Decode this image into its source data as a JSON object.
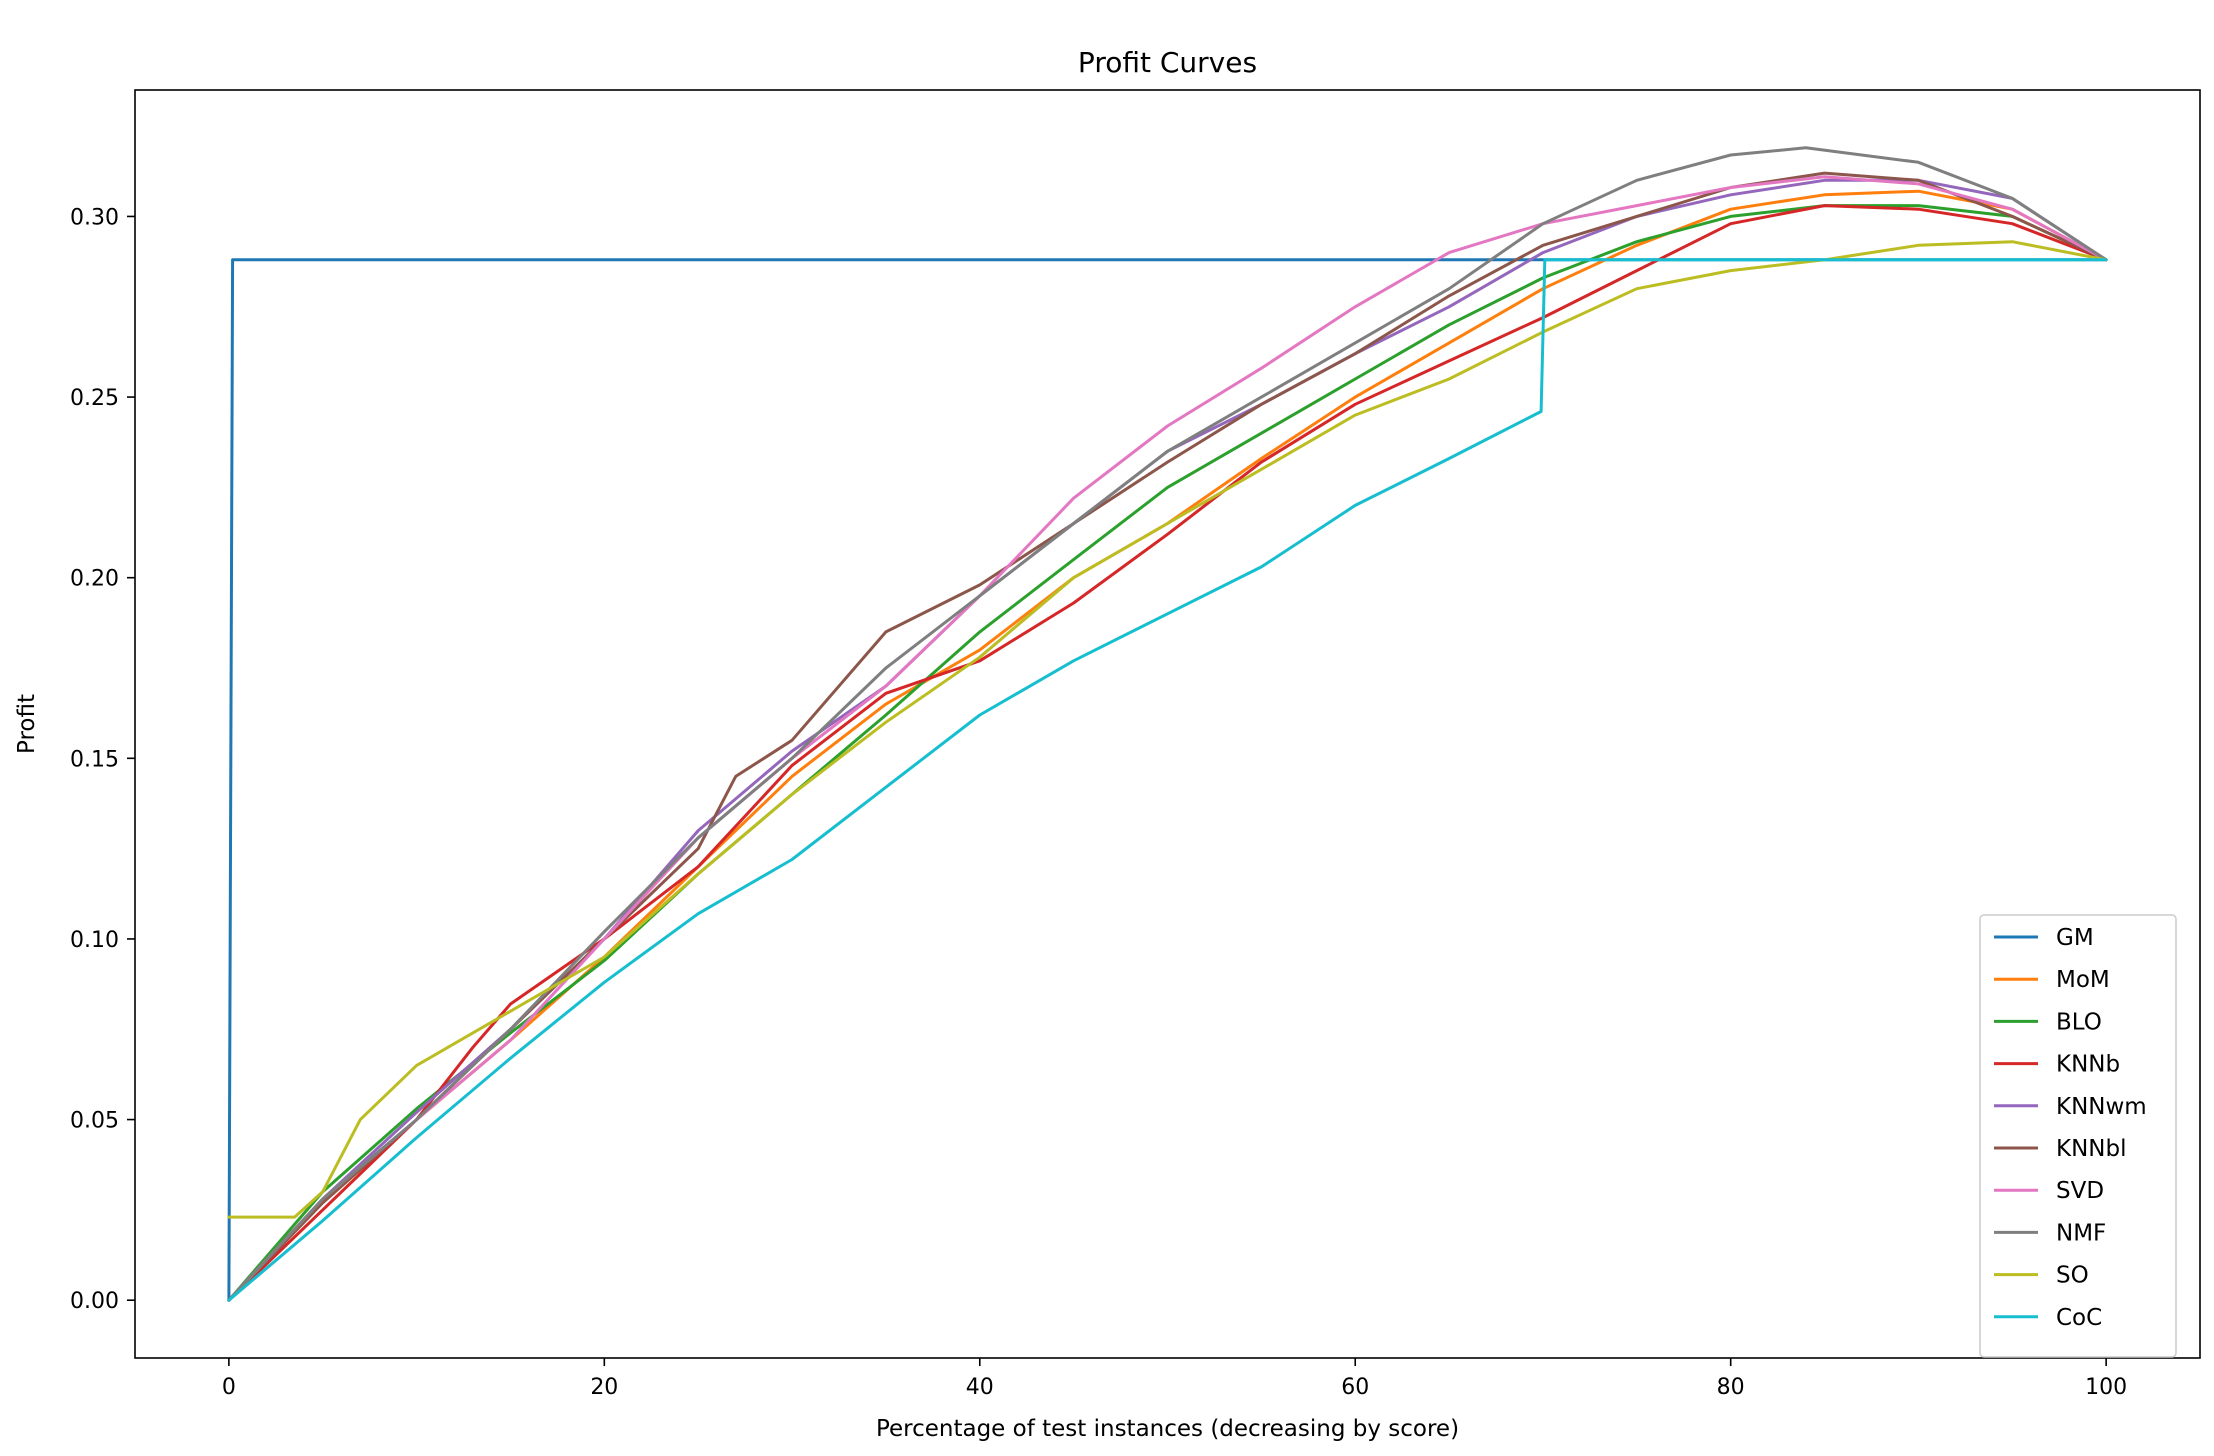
{
  "chart_data": {
    "type": "line",
    "title": "Profit Curves",
    "xlabel": "Percentage of test instances (decreasing by score)",
    "ylabel": "Profit",
    "xlim": [
      -5,
      105
    ],
    "ylim": [
      -0.016,
      0.335
    ],
    "xticks": [
      0,
      20,
      40,
      60,
      80,
      100
    ],
    "xtick_labels": [
      "0",
      "20",
      "40",
      "60",
      "80",
      "100"
    ],
    "yticks": [
      0.0,
      0.05,
      0.1,
      0.15,
      0.2,
      0.25,
      0.3
    ],
    "ytick_labels": [
      "0.00",
      "0.05",
      "0.10",
      "0.15",
      "0.20",
      "0.25",
      "0.30"
    ],
    "grid": false,
    "legend_position": "lower-right",
    "series": [
      {
        "name": "GM",
        "color": "#1f77b4",
        "x": [
          0,
          0.2,
          100
        ],
        "y": [
          0.0,
          0.288,
          0.288
        ]
      },
      {
        "name": "MoM",
        "color": "#ff7f0e",
        "x": [
          0,
          5,
          10,
          15,
          20,
          25,
          30,
          35,
          40,
          45,
          50,
          55,
          60,
          65,
          70,
          75,
          80,
          85,
          90,
          95,
          100
        ],
        "y": [
          0.0,
          0.027,
          0.05,
          0.072,
          0.095,
          0.12,
          0.145,
          0.165,
          0.18,
          0.2,
          0.215,
          0.233,
          0.25,
          0.265,
          0.28,
          0.292,
          0.302,
          0.306,
          0.307,
          0.302,
          0.288
        ]
      },
      {
        "name": "BLO",
        "color": "#2ca02c",
        "x": [
          0,
          5,
          10,
          15,
          20,
          25,
          30,
          35,
          40,
          45,
          50,
          55,
          60,
          65,
          70,
          75,
          80,
          85,
          90,
          95,
          100
        ],
        "y": [
          0.0,
          0.03,
          0.053,
          0.074,
          0.094,
          0.118,
          0.14,
          0.162,
          0.185,
          0.205,
          0.225,
          0.24,
          0.255,
          0.27,
          0.283,
          0.293,
          0.3,
          0.303,
          0.303,
          0.3,
          0.288
        ]
      },
      {
        "name": "KNNb",
        "color": "#d62728",
        "x": [
          0,
          5,
          10,
          13,
          15,
          20,
          25,
          30,
          35,
          40,
          45,
          50,
          55,
          60,
          65,
          70,
          75,
          80,
          85,
          90,
          95,
          100
        ],
        "y": [
          0.0,
          0.025,
          0.05,
          0.07,
          0.082,
          0.1,
          0.12,
          0.148,
          0.168,
          0.177,
          0.193,
          0.212,
          0.232,
          0.248,
          0.26,
          0.272,
          0.285,
          0.298,
          0.303,
          0.302,
          0.298,
          0.288
        ]
      },
      {
        "name": "KNNwm",
        "color": "#9467bd",
        "x": [
          0,
          5,
          10,
          15,
          20,
          25,
          30,
          35,
          40,
          45,
          50,
          55,
          60,
          65,
          70,
          75,
          80,
          85,
          90,
          95,
          100
        ],
        "y": [
          0.0,
          0.028,
          0.052,
          0.075,
          0.1,
          0.13,
          0.152,
          0.17,
          0.195,
          0.215,
          0.235,
          0.248,
          0.262,
          0.275,
          0.29,
          0.3,
          0.306,
          0.31,
          0.31,
          0.305,
          0.288
        ]
      },
      {
        "name": "KNNbl",
        "color": "#8c564b",
        "x": [
          0,
          5,
          10,
          15,
          20,
          25,
          27,
          30,
          35,
          40,
          45,
          50,
          55,
          60,
          65,
          70,
          75,
          80,
          85,
          90,
          95,
          100
        ],
        "y": [
          0.0,
          0.027,
          0.05,
          0.075,
          0.1,
          0.125,
          0.145,
          0.155,
          0.185,
          0.198,
          0.215,
          0.232,
          0.248,
          0.262,
          0.278,
          0.292,
          0.3,
          0.308,
          0.312,
          0.31,
          0.3,
          0.288
        ]
      },
      {
        "name": "SVD",
        "color": "#e377c2",
        "x": [
          0,
          5,
          10,
          15,
          20,
          25,
          30,
          35,
          40,
          45,
          50,
          55,
          60,
          65,
          70,
          75,
          80,
          85,
          90,
          95,
          100
        ],
        "y": [
          0.0,
          0.028,
          0.05,
          0.072,
          0.1,
          0.128,
          0.15,
          0.17,
          0.195,
          0.222,
          0.242,
          0.258,
          0.275,
          0.29,
          0.298,
          0.303,
          0.308,
          0.311,
          0.309,
          0.302,
          0.288
        ]
      },
      {
        "name": "NMF",
        "color": "#7f7f7f",
        "x": [
          0,
          5,
          10,
          15,
          20,
          25,
          30,
          35,
          40,
          45,
          50,
          55,
          60,
          65,
          70,
          75,
          80,
          84,
          90,
          95,
          100
        ],
        "y": [
          0.0,
          0.028,
          0.05,
          0.075,
          0.102,
          0.128,
          0.15,
          0.175,
          0.195,
          0.215,
          0.235,
          0.25,
          0.265,
          0.28,
          0.298,
          0.31,
          0.317,
          0.319,
          0.315,
          0.305,
          0.288
        ]
      },
      {
        "name": "SO",
        "color": "#bcbd22",
        "x": [
          0,
          3.5,
          5,
          7,
          10,
          15,
          20,
          25,
          30,
          35,
          40,
          45,
          50,
          55,
          60,
          65,
          70,
          75,
          80,
          85,
          90,
          95,
          100
        ],
        "y": [
          0.023,
          0.023,
          0.03,
          0.05,
          0.065,
          0.08,
          0.095,
          0.118,
          0.14,
          0.16,
          0.178,
          0.2,
          0.215,
          0.23,
          0.245,
          0.255,
          0.268,
          0.28,
          0.285,
          0.288,
          0.292,
          0.293,
          0.288
        ]
      },
      {
        "name": "CoC",
        "color": "#17becf",
        "x": [
          0,
          5,
          10,
          15,
          20,
          25,
          30,
          35,
          40,
          45,
          50,
          55,
          60,
          65,
          69.9,
          70.1,
          75,
          100
        ],
        "y": [
          0.0,
          0.022,
          0.045,
          0.067,
          0.088,
          0.107,
          0.122,
          0.142,
          0.162,
          0.177,
          0.19,
          0.203,
          0.22,
          0.233,
          0.246,
          0.288,
          0.288,
          0.288
        ]
      }
    ]
  }
}
